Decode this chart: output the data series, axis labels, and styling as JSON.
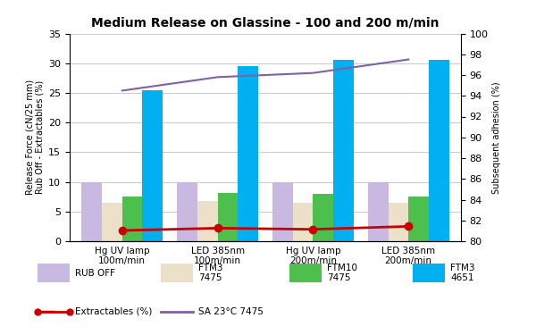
{
  "title": "Medium Release on Glassine - 100 and 200 m/min",
  "categories": [
    "Hg UV lamp\n100m/min",
    "LED 385nm\n100m/min",
    "Hg UV lamp\n200m/min",
    "LED 385nm\n200m/min"
  ],
  "rub_off": [
    10,
    10,
    10,
    10
  ],
  "ftm3_7475": [
    6.5,
    6.8,
    6.5,
    6.5
  ],
  "ftm10_7475": [
    7.5,
    8.2,
    8.0,
    7.5
  ],
  "ftm3_4651": [
    25.5,
    29.5,
    30.5,
    30.5
  ],
  "extractables": [
    1.8,
    2.2,
    2.0,
    2.5
  ],
  "sa_23c_7475": [
    94.5,
    95.8,
    96.2,
    97.5
  ],
  "rub_off_color": "#c9b8e0",
  "ftm3_7475_color": "#ede0c8",
  "ftm10_7475_color": "#4cbf4c",
  "ftm3_4651_color": "#00b0f0",
  "extractables_color": "#cc0000",
  "sa_color": "#8060a8",
  "ylabel_left": "Release Force (cN/25 mm)\nRub Off - Extractables (%)",
  "ylabel_right": "Subsequent adhesion (%)",
  "ylim_left": [
    0,
    35
  ],
  "ylim_right": [
    80,
    100
  ],
  "yticks_left": [
    0,
    5,
    10,
    15,
    20,
    25,
    30,
    35
  ],
  "yticks_right": [
    80,
    82,
    84,
    86,
    88,
    90,
    92,
    94,
    96,
    98,
    100
  ],
  "background_color": "#ffffff",
  "grid_color": "#cccccc"
}
